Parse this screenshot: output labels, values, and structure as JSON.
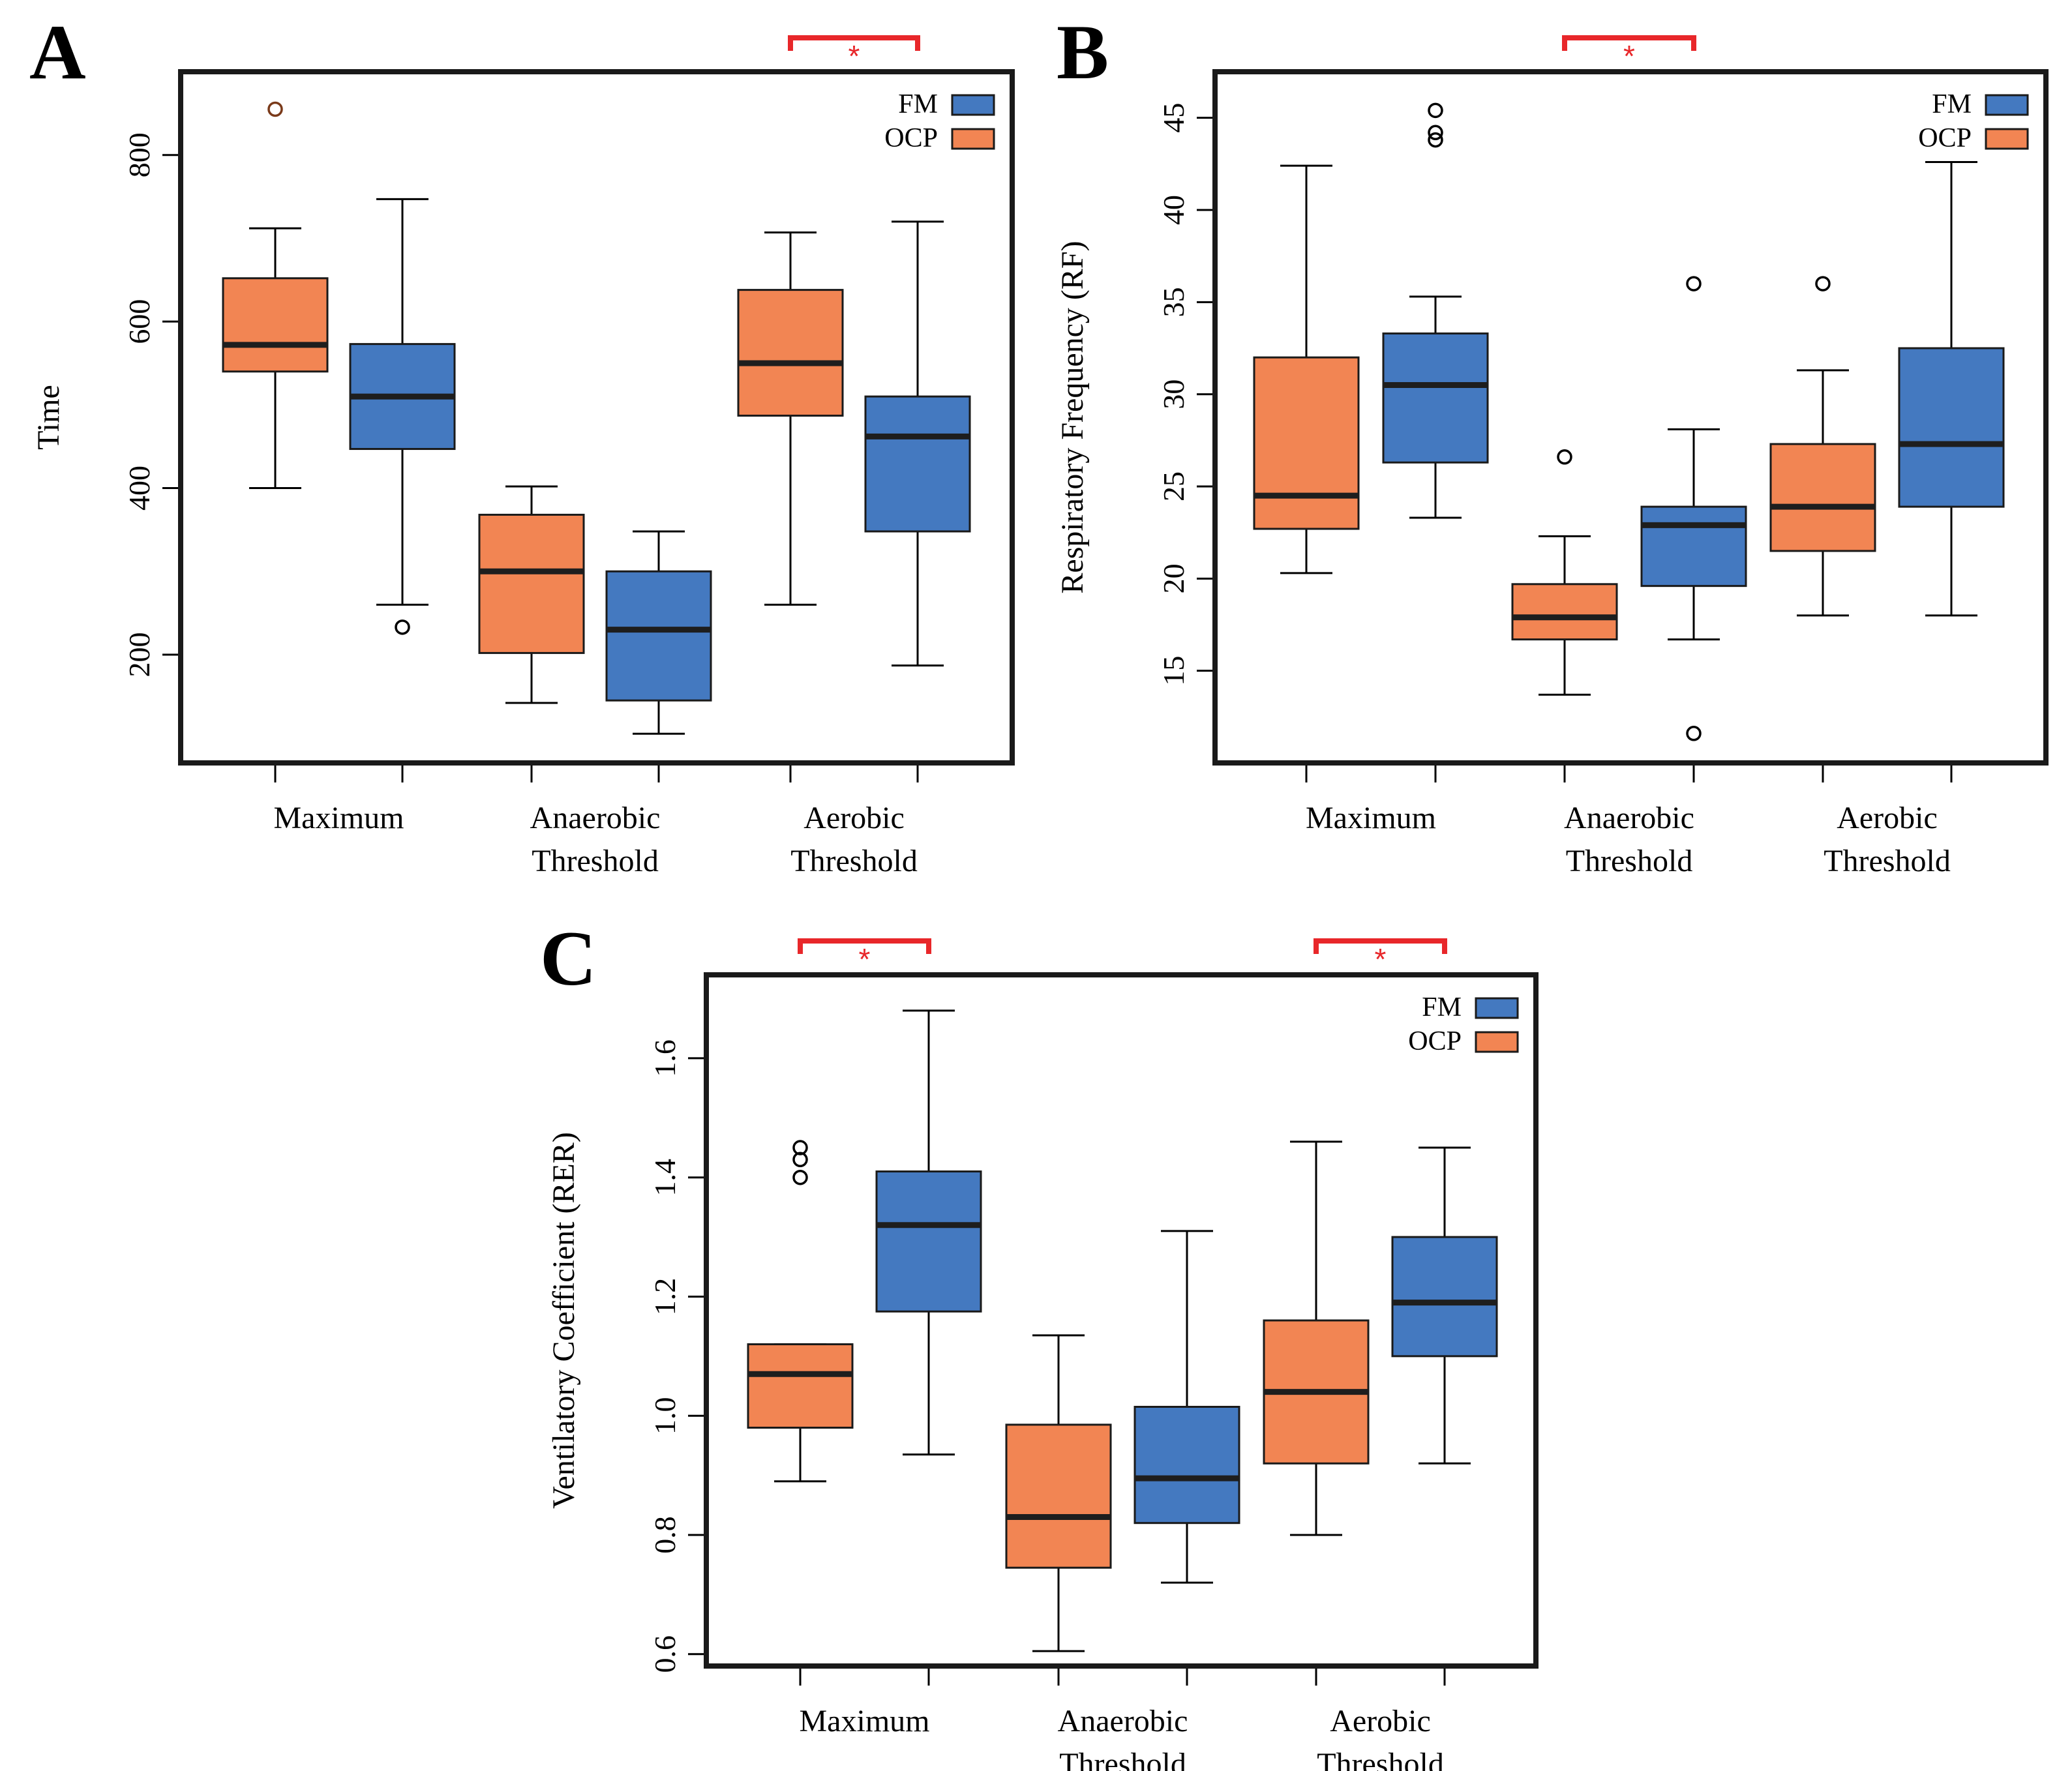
{
  "colors": {
    "FM": "#4479c0",
    "OCP": "#f28553",
    "significance": "#e8272a",
    "outlier_OCP_A": "#7a3a1a"
  },
  "legend": [
    {
      "label": "FM",
      "group": "FM"
    },
    {
      "label": "OCP",
      "group": "OCP"
    }
  ],
  "chart_data": [
    {
      "type": "boxplot",
      "panel": "A",
      "ylabel": "Time",
      "ylim": [
        70,
        900
      ],
      "yticks": [
        200,
        400,
        600,
        800
      ],
      "categories": [
        [
          "Maximum"
        ],
        [
          "Anaerobic",
          "Threshold"
        ],
        [
          "Aerobic",
          "Threshold"
        ]
      ],
      "significance": [
        {
          "category": 2,
          "label": "*"
        }
      ],
      "boxes": [
        {
          "category": 0,
          "group": "OCP",
          "whisker_low": 400,
          "q1": 540,
          "median": 572,
          "q3": 652,
          "whisker_high": 712,
          "outliers": [
            855
          ]
        },
        {
          "category": 0,
          "group": "FM",
          "whisker_low": 260,
          "q1": 447,
          "median": 510,
          "q3": 573,
          "whisker_high": 747,
          "outliers": [
            233
          ]
        },
        {
          "category": 1,
          "group": "OCP",
          "whisker_low": 142,
          "q1": 202,
          "median": 300,
          "q3": 368,
          "whisker_high": 402,
          "outliers": []
        },
        {
          "category": 1,
          "group": "FM",
          "whisker_low": 105,
          "q1": 145,
          "median": 230,
          "q3": 300,
          "whisker_high": 348,
          "outliers": []
        },
        {
          "category": 2,
          "group": "OCP",
          "whisker_low": 260,
          "q1": 487,
          "median": 550,
          "q3": 638,
          "whisker_high": 707,
          "outliers": []
        },
        {
          "category": 2,
          "group": "FM",
          "whisker_low": 187,
          "q1": 348,
          "median": 462,
          "q3": 510,
          "whisker_high": 720,
          "outliers": []
        }
      ]
    },
    {
      "type": "boxplot",
      "panel": "B",
      "ylabel": "Respiratory Frequency (RF)",
      "ylim": [
        10,
        47.5
      ],
      "yticks": [
        15,
        20,
        25,
        30,
        35,
        40,
        45
      ],
      "categories": [
        [
          "Maximum"
        ],
        [
          "Anaerobic",
          "Threshold"
        ],
        [
          "Aerobic",
          "Threshold"
        ]
      ],
      "significance": [
        {
          "category": 1,
          "label": "*"
        }
      ],
      "boxes": [
        {
          "category": 0,
          "group": "OCP",
          "whisker_low": 20.3,
          "q1": 22.7,
          "median": 24.5,
          "q3": 32,
          "whisker_high": 42.4,
          "outliers": []
        },
        {
          "category": 0,
          "group": "FM",
          "whisker_low": 23.3,
          "q1": 26.3,
          "median": 30.5,
          "q3": 33.3,
          "whisker_high": 35.3,
          "outliers": [
            43.8,
            44.2,
            45.4
          ]
        },
        {
          "category": 1,
          "group": "OCP",
          "whisker_low": 13.7,
          "q1": 16.7,
          "median": 17.9,
          "q3": 19.7,
          "whisker_high": 22.3,
          "outliers": [
            26.6
          ]
        },
        {
          "category": 1,
          "group": "FM",
          "whisker_low": 16.7,
          "q1": 19.6,
          "median": 22.9,
          "q3": 23.9,
          "whisker_high": 28.1,
          "outliers": [
            11.6,
            36.0
          ]
        },
        {
          "category": 2,
          "group": "OCP",
          "whisker_low": 18.0,
          "q1": 21.5,
          "median": 23.9,
          "q3": 27.3,
          "whisker_high": 31.3,
          "outliers": [
            36.0
          ]
        },
        {
          "category": 2,
          "group": "FM",
          "whisker_low": 18.0,
          "q1": 23.9,
          "median": 27.3,
          "q3": 32.5,
          "whisker_high": 42.6,
          "outliers": []
        }
      ]
    },
    {
      "type": "boxplot",
      "panel": "C",
      "ylabel": "Ventilatory Coefficient (RER)",
      "ylim": [
        0.58,
        1.74
      ],
      "yticks": [
        "0.6",
        "0.8",
        "1.0",
        "1.2",
        "1.4",
        "1.6"
      ],
      "categories": [
        [
          "Maximum"
        ],
        [
          "Anaerobic",
          "Threshold"
        ],
        [
          "Aerobic",
          "Threshold"
        ]
      ],
      "significance": [
        {
          "category": 0,
          "label": "*"
        },
        {
          "category": 2,
          "label": "*"
        }
      ],
      "boxes": [
        {
          "category": 0,
          "group": "OCP",
          "whisker_low": 0.89,
          "q1": 0.98,
          "median": 1.07,
          "q3": 1.12,
          "whisker_high": 1.12,
          "outliers": [
            1.4,
            1.43,
            1.45
          ]
        },
        {
          "category": 0,
          "group": "FM",
          "whisker_low": 0.935,
          "q1": 1.175,
          "median": 1.32,
          "q3": 1.41,
          "whisker_high": 1.68,
          "outliers": []
        },
        {
          "category": 1,
          "group": "OCP",
          "whisker_low": 0.605,
          "q1": 0.745,
          "median": 0.83,
          "q3": 0.985,
          "whisker_high": 1.135,
          "outliers": []
        },
        {
          "category": 1,
          "group": "FM",
          "whisker_low": 0.72,
          "q1": 0.82,
          "median": 0.895,
          "q3": 1.015,
          "whisker_high": 1.31,
          "outliers": []
        },
        {
          "category": 2,
          "group": "OCP",
          "whisker_low": 0.8,
          "q1": 0.92,
          "median": 1.04,
          "q3": 1.16,
          "whisker_high": 1.46,
          "outliers": []
        },
        {
          "category": 2,
          "group": "FM",
          "whisker_low": 0.92,
          "q1": 1.1,
          "median": 1.19,
          "q3": 1.3,
          "whisker_high": 1.45,
          "outliers": []
        }
      ]
    }
  ]
}
